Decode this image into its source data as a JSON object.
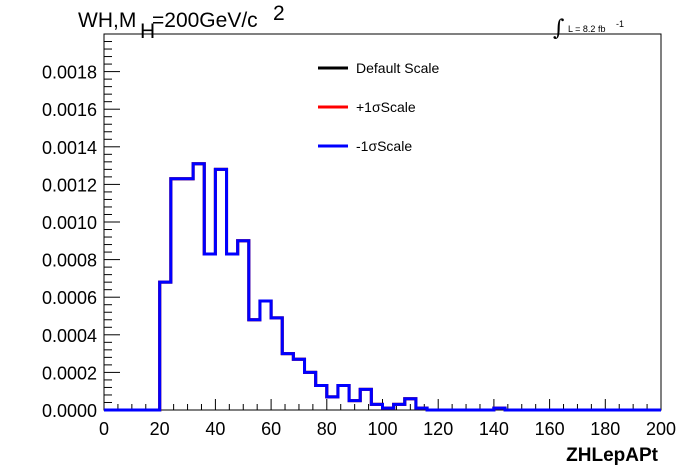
{
  "chart_data": {
    "type": "line",
    "title_main": "WH,M",
    "title_sub": "H",
    "title_rest": "=200GeV/c",
    "title_sup": "2",
    "lumi_label": "L = 8.2 fb",
    "lumi_sup": "-1",
    "xlabel": "ZHLepAPt",
    "xlim": [
      0,
      200
    ],
    "ylim": [
      0,
      0.002
    ],
    "x_ticks": [
      "0",
      "20",
      "40",
      "60",
      "80",
      "100",
      "120",
      "140",
      "160",
      "180",
      "200"
    ],
    "y_ticks": [
      "0.0000",
      "0.0002",
      "0.0004",
      "0.0006",
      "0.0008",
      "0.0010",
      "0.0012",
      "0.0014",
      "0.0016",
      "0.0018"
    ],
    "legend": [
      {
        "label": "Default Scale",
        "color": "#000000"
      },
      {
        "label": "+1σScale",
        "color": "#ff0000"
      },
      {
        "label": "-1σScale",
        "color": "#0000ff"
      }
    ],
    "bin_edges": [
      0,
      4,
      8,
      12,
      16,
      20,
      24,
      28,
      32,
      36,
      40,
      44,
      48,
      52,
      56,
      60,
      64,
      68,
      72,
      76,
      80,
      84,
      88,
      92,
      96,
      100,
      104,
      108,
      112,
      116,
      120,
      124,
      128,
      132,
      136,
      140,
      144,
      148,
      152,
      156,
      160,
      164,
      168,
      172,
      176,
      180,
      184,
      188,
      192,
      196,
      200
    ],
    "bin_values": [
      0,
      0,
      0,
      0,
      0,
      0.00068,
      0.00123,
      0.00123,
      0.00131,
      0.00083,
      0.00128,
      0.00083,
      0.0009,
      0.00048,
      0.00058,
      0.00049,
      0.0003,
      0.00027,
      0.0002,
      0.00013,
      7e-05,
      0.00013,
      5e-05,
      0.00011,
      3e-05,
      1e-05,
      3e-05,
      6e-05,
      1e-05,
      0,
      0,
      0,
      0,
      0,
      0,
      1e-05,
      0,
      0,
      0,
      0,
      0,
      0,
      0,
      0,
      0,
      0,
      0,
      0,
      0,
      0
    ],
    "series_color": "#0000ff"
  }
}
